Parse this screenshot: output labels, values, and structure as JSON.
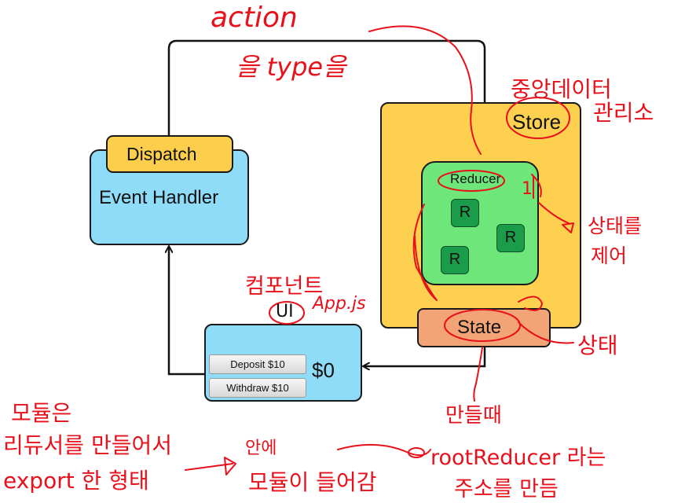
{
  "store": {
    "label": "Store"
  },
  "reducer": {
    "label": "Reducer",
    "items": [
      "R",
      "R",
      "R"
    ]
  },
  "state": {
    "label": "State"
  },
  "event_handler": {
    "label": "Event Handler",
    "dispatch_label": "Dispatch"
  },
  "ui": {
    "deposit_label": "Deposit $10",
    "withdraw_label": "Withdraw $10",
    "balance": "$0"
  },
  "handwritten": {
    "action": "action",
    "type": "을 type을",
    "central_data": "중앙데이터",
    "central_manage": "관리소",
    "control_state": "상태를",
    "control_state_2": "제어",
    "state_note": "상태",
    "component": "컴포넌트",
    "ui": "UI",
    "app_js": "App.js",
    "make_when": "만들때",
    "modules_1": "모듈은",
    "modules_2": "리듀서를 만들어서",
    "modules_3": "export 한 형태",
    "inside_1": "안에",
    "inside_2": "모듈이 들어감",
    "root_reducer_1": "rootReducer 라는",
    "root_reducer_2": "주소를 만듬",
    "number_one": "1"
  },
  "colors": {
    "store": "#fdd050",
    "reducer": "#6ee67a",
    "reducer_item": "#1a9c4a",
    "state": "#f3a477",
    "event_handler": "#8fdcf9",
    "dispatch": "#fcce4b",
    "annotation": "#e8101a"
  }
}
